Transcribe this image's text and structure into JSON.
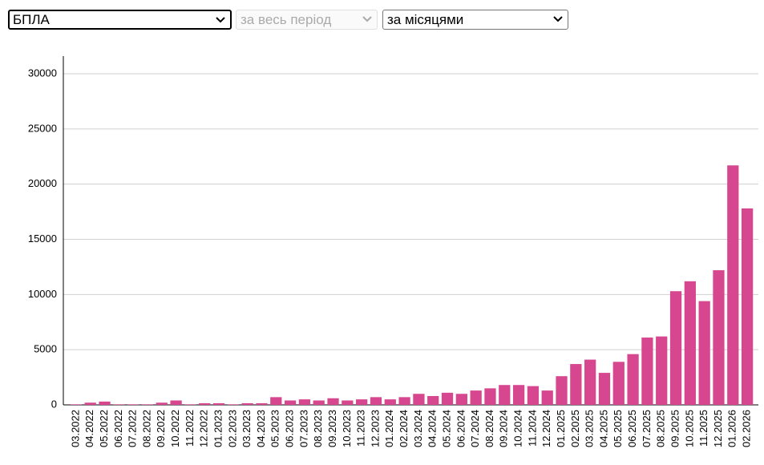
{
  "controls": {
    "source": "БПЛА",
    "period": "за весь період",
    "grouping": "за місяцями"
  },
  "chart_data": {
    "type": "bar",
    "categories": [
      "03.2022",
      "04.2022",
      "05.2022",
      "06.2022",
      "07.2022",
      "08.2022",
      "09.2022",
      "10.2022",
      "11.2022",
      "12.2022",
      "01.2023",
      "02.2023",
      "03.2023",
      "04.2023",
      "05.2023",
      "06.2023",
      "07.2023",
      "08.2023",
      "09.2023",
      "10.2023",
      "11.2023",
      "12.2023",
      "01.2024",
      "02.2024",
      "03.2024",
      "04.2024",
      "05.2024",
      "06.2024",
      "07.2024",
      "08.2024",
      "09.2024",
      "10.2024",
      "11.2024",
      "12.2024",
      "01.2025",
      "02.2025",
      "03.2025",
      "04.2025",
      "05.2025",
      "06.2025",
      "07.2025",
      "08.2025",
      "09.2025",
      "10.2025",
      "11.2025",
      "12.2025",
      "01.2026",
      "02.2026"
    ],
    "values": [
      50,
      200,
      300,
      50,
      50,
      50,
      200,
      400,
      50,
      150,
      150,
      50,
      150,
      150,
      700,
      400,
      500,
      400,
      600,
      400,
      500,
      700,
      500,
      700,
      1000,
      800,
      1100,
      1000,
      1300,
      1500,
      1800,
      1800,
      1700,
      1300,
      2600,
      3700,
      4100,
      2900,
      3900,
      4600,
      6100,
      6200,
      10300,
      11200,
      9400,
      12200,
      21700,
      17800
    ],
    "color": "#d6478f",
    "ylim": [
      0,
      31600
    ],
    "yticks": [
      0,
      5000,
      10000,
      15000,
      20000,
      25000,
      30000
    ],
    "grid": true
  }
}
